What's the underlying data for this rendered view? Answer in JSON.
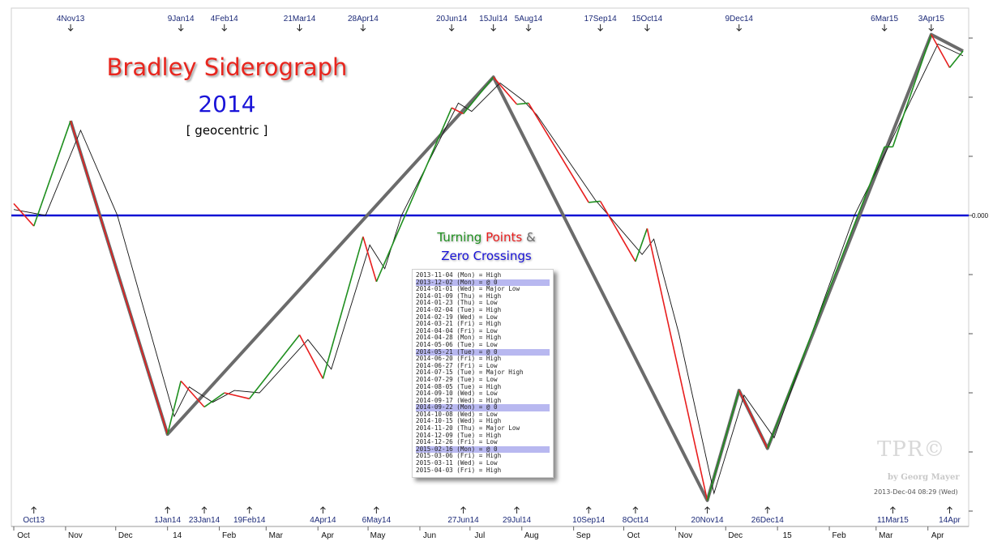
{
  "title": "Bradley Siderograph",
  "subtitle": "2014",
  "note": "[ geocentric ]",
  "legend_title_1": "Turning",
  "legend_title_2": "Points",
  "legend_title_amp": "&",
  "legend_title_3": "Zero Crossings",
  "watermark": "TPR©",
  "watermark_by": "by Georg Mayer",
  "timestamp": "2013-Dec-04 08:29 (Wed)",
  "colors": {
    "title": "#e8261e",
    "year": "#1a14d8",
    "zero_line": "#0a10d4",
    "up_segment": "#1f8f1f",
    "down_segment": "#e81e1e",
    "trend": "#6b6b6b",
    "label": "#1c2a78"
  },
  "legend_rows": [
    {
      "text": "2013-11-04 (Mon) = High",
      "zero": false
    },
    {
      "text": "2013-12-02 (Mon) = @ 0",
      "zero": true
    },
    {
      "text": "2014-01-01 (Wed) = Major Low",
      "zero": false
    },
    {
      "text": "2014-01-09 (Thu) = High",
      "zero": false
    },
    {
      "text": "2014-01-23 (Thu) = Low",
      "zero": false
    },
    {
      "text": "2014-02-04 (Tue) = High",
      "zero": false
    },
    {
      "text": "2014-02-19 (Wed) = Low",
      "zero": false
    },
    {
      "text": "2014-03-21 (Fri) = High",
      "zero": false
    },
    {
      "text": "2014-04-04 (Fri) = Low",
      "zero": false
    },
    {
      "text": "2014-04-28 (Mon) = High",
      "zero": false
    },
    {
      "text": "2014-05-06 (Tue) = Low",
      "zero": false
    },
    {
      "text": "2014-05-21 (Tue) = @ 0",
      "zero": true
    },
    {
      "text": "2014-06-20 (Fri) = High",
      "zero": false
    },
    {
      "text": "2014-06-27 (Fri) = Low",
      "zero": false
    },
    {
      "text": "2014-07-15 (Tue) = Major High",
      "zero": false
    },
    {
      "text": "2014-07-29 (Tue) = Low",
      "zero": false
    },
    {
      "text": "2014-08-05 (Tue) = High",
      "zero": false
    },
    {
      "text": "2014-09-10 (Wed) = Low",
      "zero": false
    },
    {
      "text": "2014-09-17 (Wed) = High",
      "zero": false
    },
    {
      "text": "2014-09-22 (Mon) = @ 0",
      "zero": true
    },
    {
      "text": "2014-10-08 (Wed) = Low",
      "zero": false
    },
    {
      "text": "2014-10-15 (Wed) = High",
      "zero": false
    },
    {
      "text": "2014-11-20 (Thu) = Major Low",
      "zero": false
    },
    {
      "text": "2014-12-09 (Tue) = High",
      "zero": false
    },
    {
      "text": "2014-12-26 (Fri) = Low",
      "zero": false
    },
    {
      "text": "2015-02-16 (Mon) = @ 0",
      "zero": true
    },
    {
      "text": "2015-03-06 (Fri) = High",
      "zero": false
    },
    {
      "text": "2015-03-11 (Wed) = Low",
      "zero": false
    },
    {
      "text": "2015-04-03 (Fri) = High",
      "zero": false
    }
  ],
  "chart_data": {
    "type": "line",
    "title": "Bradley Siderograph",
    "subtitle": "2014",
    "x_range": [
      "2013-10-01",
      "2015-04-22"
    ],
    "zero_label": "0.000",
    "month_ticks": [
      {
        "date": "2013-10-01",
        "label": "Oct"
      },
      {
        "date": "2013-11-01",
        "label": "Nov"
      },
      {
        "date": "2013-12-01",
        "label": "Dec"
      },
      {
        "date": "2014-01-01",
        "label": "14"
      },
      {
        "date": "2014-02-01",
        "label": "Feb"
      },
      {
        "date": "2014-03-01",
        "label": "Mar"
      },
      {
        "date": "2014-04-01",
        "label": "Apr"
      },
      {
        "date": "2014-05-01",
        "label": "May"
      },
      {
        "date": "2014-06-01",
        "label": "Jun"
      },
      {
        "date": "2014-07-01",
        "label": "Jul"
      },
      {
        "date": "2014-08-01",
        "label": "Aug"
      },
      {
        "date": "2014-09-01",
        "label": "Sep"
      },
      {
        "date": "2014-10-01",
        "label": "Oct"
      },
      {
        "date": "2014-11-01",
        "label": "Nov"
      },
      {
        "date": "2014-12-01",
        "label": "Dec"
      },
      {
        "date": "2015-01-01",
        "label": "15"
      },
      {
        "date": "2015-02-01",
        "label": "Feb"
      },
      {
        "date": "2015-03-01",
        "label": "Mar"
      },
      {
        "date": "2015-04-01",
        "label": "Apr"
      }
    ],
    "top_markers": [
      {
        "date": "2013-11-04",
        "label": "4Nov13"
      },
      {
        "date": "2014-01-09",
        "label": "9Jan14"
      },
      {
        "date": "2014-02-04",
        "label": "4Feb14"
      },
      {
        "date": "2014-03-21",
        "label": "21Mar14"
      },
      {
        "date": "2014-04-28",
        "label": "28Apr14"
      },
      {
        "date": "2014-06-20",
        "label": "20Jun14"
      },
      {
        "date": "2014-07-15",
        "label": "15Jul14"
      },
      {
        "date": "2014-08-05",
        "label": "5Aug14"
      },
      {
        "date": "2014-09-17",
        "label": "17Sep14"
      },
      {
        "date": "2014-10-15",
        "label": "15Oct14"
      },
      {
        "date": "2014-12-09",
        "label": "9Dec14"
      },
      {
        "date": "2015-03-06",
        "label": "6Mar15"
      },
      {
        "date": "2015-04-03",
        "label": "3Apr15"
      }
    ],
    "bottom_markers": [
      {
        "date": "2013-10-13",
        "label": "Oct13"
      },
      {
        "date": "2014-01-01",
        "label": "1Jan14"
      },
      {
        "date": "2014-01-23",
        "label": "23Jan14"
      },
      {
        "date": "2014-02-19",
        "label": "19Feb14"
      },
      {
        "date": "2014-04-04",
        "label": "4Apr14"
      },
      {
        "date": "2014-05-06",
        "label": "6May14"
      },
      {
        "date": "2014-06-27",
        "label": "27Jun14"
      },
      {
        "date": "2014-07-29",
        "label": "29Jul14"
      },
      {
        "date": "2014-09-10",
        "label": "10Sep14"
      },
      {
        "date": "2014-10-08",
        "label": "8Oct14"
      },
      {
        "date": "2014-11-20",
        "label": "20Nov14"
      },
      {
        "date": "2014-12-26",
        "label": "26Dec14"
      },
      {
        "date": "2015-03-11",
        "label": "11Mar15"
      },
      {
        "date": "2015-04-14",
        "label": "14Apr"
      }
    ],
    "turning_points": [
      {
        "date": "2013-10-01",
        "value": 0.1
      },
      {
        "date": "2013-10-13",
        "value": -0.09
      },
      {
        "date": "2013-11-04",
        "value": 0.8
      },
      {
        "date": "2014-01-01",
        "value": -1.85
      },
      {
        "date": "2014-01-09",
        "value": -1.4
      },
      {
        "date": "2014-01-23",
        "value": -1.62
      },
      {
        "date": "2014-02-04",
        "value": -1.5
      },
      {
        "date": "2014-02-19",
        "value": -1.55
      },
      {
        "date": "2014-03-21",
        "value": -1.01
      },
      {
        "date": "2014-04-04",
        "value": -1.38
      },
      {
        "date": "2014-04-28",
        "value": -0.18
      },
      {
        "date": "2014-05-06",
        "value": -0.56
      },
      {
        "date": "2014-06-20",
        "value": 0.91
      },
      {
        "date": "2014-06-27",
        "value": 0.86
      },
      {
        "date": "2014-07-15",
        "value": 1.17
      },
      {
        "date": "2014-07-29",
        "value": 0.94
      },
      {
        "date": "2014-08-05",
        "value": 0.95
      },
      {
        "date": "2014-09-10",
        "value": 0.11
      },
      {
        "date": "2014-09-17",
        "value": 0.12
      },
      {
        "date": "2014-10-08",
        "value": -0.39
      },
      {
        "date": "2014-10-15",
        "value": -0.11
      },
      {
        "date": "2014-11-20",
        "value": -2.41
      },
      {
        "date": "2014-12-09",
        "value": -1.48
      },
      {
        "date": "2014-12-26",
        "value": -1.97
      },
      {
        "date": "2015-03-06",
        "value": 0.58
      },
      {
        "date": "2015-03-11",
        "value": 0.58
      },
      {
        "date": "2015-04-03",
        "value": 1.53
      },
      {
        "date": "2015-04-14",
        "value": 1.25
      },
      {
        "date": "2015-04-22",
        "value": 1.39
      }
    ],
    "major_trend": [
      {
        "date": "2013-11-04",
        "value": 0.8
      },
      {
        "date": "2014-01-01",
        "value": -1.85
      },
      {
        "date": "2014-07-15",
        "value": 1.17
      },
      {
        "date": "2014-11-20",
        "value": -2.41
      },
      {
        "date": "2014-12-09",
        "value": -1.48
      },
      {
        "date": "2014-12-26",
        "value": -1.97
      },
      {
        "date": "2015-04-03",
        "value": 1.53
      },
      {
        "date": "2015-04-22",
        "value": 1.39
      }
    ],
    "smoothed_line": [
      {
        "date": "2013-10-01",
        "value": 0.05
      },
      {
        "date": "2013-10-20",
        "value": 0.0
      },
      {
        "date": "2013-11-10",
        "value": 0.72
      },
      {
        "date": "2013-12-02",
        "value": 0.0
      },
      {
        "date": "2014-01-05",
        "value": -1.7
      },
      {
        "date": "2014-01-14",
        "value": -1.45
      },
      {
        "date": "2014-01-28",
        "value": -1.58
      },
      {
        "date": "2014-02-10",
        "value": -1.48
      },
      {
        "date": "2014-02-25",
        "value": -1.5
      },
      {
        "date": "2014-03-26",
        "value": -1.05
      },
      {
        "date": "2014-04-09",
        "value": -1.3
      },
      {
        "date": "2014-05-02",
        "value": -0.25
      },
      {
        "date": "2014-05-11",
        "value": -0.45
      },
      {
        "date": "2014-05-21",
        "value": 0.0
      },
      {
        "date": "2014-06-24",
        "value": 0.95
      },
      {
        "date": "2014-07-02",
        "value": 0.88
      },
      {
        "date": "2014-07-19",
        "value": 1.12
      },
      {
        "date": "2014-08-02",
        "value": 0.97
      },
      {
        "date": "2014-08-10",
        "value": 0.85
      },
      {
        "date": "2014-09-14",
        "value": 0.13
      },
      {
        "date": "2014-09-22",
        "value": 0.0
      },
      {
        "date": "2014-10-12",
        "value": -0.33
      },
      {
        "date": "2014-10-19",
        "value": -0.2
      },
      {
        "date": "2014-11-03",
        "value": -1.0
      },
      {
        "date": "2014-11-24",
        "value": -2.35
      },
      {
        "date": "2014-12-12",
        "value": -1.52
      },
      {
        "date": "2014-12-30",
        "value": -1.88
      },
      {
        "date": "2015-02-16",
        "value": 0.0
      },
      {
        "date": "2015-03-09",
        "value": 0.6
      },
      {
        "date": "2015-04-07",
        "value": 1.45
      },
      {
        "date": "2015-04-22",
        "value": 1.35
      }
    ]
  }
}
